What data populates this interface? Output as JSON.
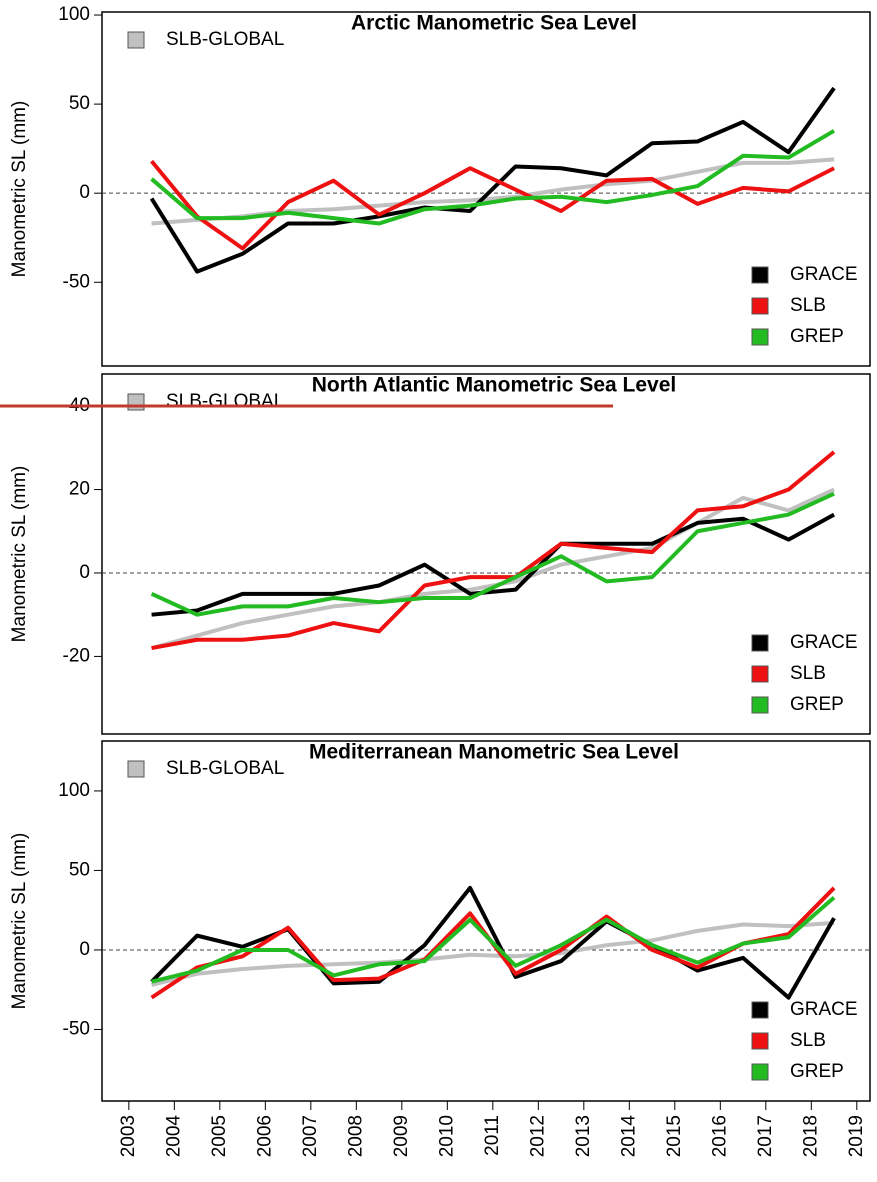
{
  "chart_data": [
    {
      "type": "line",
      "title": "Arctic Manometric Sea Level",
      "y_label": "Manometric SL (mm)",
      "x": [
        2003.5,
        2004.5,
        2005.5,
        2006.5,
        2007.5,
        2008.5,
        2009.5,
        2010.5,
        2011.5,
        2012.5,
        2013.5,
        2014.5,
        2015.5,
        2016.5,
        2017.5,
        2018.5
      ],
      "xlim": [
        2002.41,
        2019.29
      ],
      "ylim": [
        -97,
        101.7
      ],
      "yticks": [
        -50,
        0,
        50,
        100
      ],
      "hline": 0,
      "series": [
        {
          "name": "SLB-GLOBAL",
          "color": "#c0c0c0",
          "legend": "upper left",
          "values": [
            -17,
            -15,
            -13,
            -10,
            -9,
            -7,
            -5,
            -4,
            -2,
            2,
            5,
            7,
            12,
            17,
            17,
            19
          ]
        },
        {
          "name": "GRACE",
          "color": "#000000",
          "legend": "lower right",
          "values": [
            -3,
            -44,
            -34,
            -17,
            -17,
            -13,
            -8,
            -10,
            15,
            14,
            10,
            28,
            29,
            40,
            23,
            59
          ]
        },
        {
          "name": "SLB",
          "color": "#ee1111",
          "legend": "lower right",
          "values": [
            18,
            -13,
            -31,
            -5,
            7,
            -12,
            0,
            14,
            2,
            -10,
            7,
            8,
            -6,
            3,
            1,
            14
          ]
        },
        {
          "name": "GREP",
          "color": "#22bb22",
          "legend": "lower right",
          "values": [
            8,
            -14,
            -14,
            -11,
            -14,
            -17,
            -9,
            -7,
            -3,
            -2,
            -5,
            -1,
            4,
            21,
            20,
            35
          ]
        }
      ]
    },
    {
      "type": "line",
      "title": "North Atlantic Manometric Sea Level",
      "y_label": "Manometric SL (mm)",
      "x": [
        2003.5,
        2004.5,
        2005.5,
        2006.5,
        2007.5,
        2008.5,
        2009.5,
        2010.5,
        2011.5,
        2012.5,
        2013.5,
        2014.5,
        2015.5,
        2016.5,
        2017.5,
        2018.5
      ],
      "xlim": [
        2002.41,
        2019.29
      ],
      "ylim": [
        -38.6,
        47.7
      ],
      "yticks": [
        -20,
        0,
        20,
        40
      ],
      "hline": 0,
      "series": [
        {
          "name": "SLB-GLOBAL",
          "color": "#c0c0c0",
          "legend": "upper left",
          "values": [
            -18,
            -15,
            -12,
            -10,
            -8,
            -7,
            -5,
            -4,
            -2,
            2,
            4,
            6,
            12,
            18,
            15,
            20
          ]
        },
        {
          "name": "GRACE",
          "color": "#000000",
          "legend": "lower right",
          "values": [
            -10,
            -9,
            -5,
            -5,
            -5,
            -3,
            2,
            -5,
            -4,
            7,
            7,
            7,
            12,
            13,
            8,
            14
          ]
        },
        {
          "name": "SLB",
          "color": "#ee1111",
          "legend": "lower right",
          "values": [
            -18,
            -16,
            -16,
            -15,
            -12,
            -14,
            -3,
            -1,
            -1,
            7,
            6,
            5,
            15,
            16,
            20,
            29
          ]
        },
        {
          "name": "GREP",
          "color": "#22bb22",
          "legend": "lower right",
          "values": [
            -5,
            -10,
            -8,
            -8,
            -6,
            -7,
            -6,
            -6,
            -1,
            4,
            -2,
            -1,
            10,
            12,
            14,
            19
          ]
        }
      ]
    },
    {
      "type": "line",
      "title": "Mediterranean Manometric Sea Level",
      "y_label": "Manometric SL (mm)",
      "x": [
        2003.5,
        2004.5,
        2005.5,
        2006.5,
        2007.5,
        2008.5,
        2009.5,
        2010.5,
        2011.5,
        2012.5,
        2013.5,
        2014.5,
        2015.5,
        2016.5,
        2017.5,
        2018.5
      ],
      "xlim": [
        2002.41,
        2019.29
      ],
      "ylim": [
        -95,
        131.4
      ],
      "yticks": [
        -50,
        0,
        50,
        100
      ],
      "hline": 0,
      "xticks": [
        2003,
        2004,
        2005,
        2006,
        2007,
        2008,
        2009,
        2010,
        2011,
        2012,
        2013,
        2014,
        2015,
        2016,
        2017,
        2018,
        2019
      ],
      "series": [
        {
          "name": "SLB-GLOBAL",
          "color": "#c0c0c0",
          "legend": "upper left",
          "values": [
            -22,
            -15,
            -12,
            -10,
            -9,
            -8,
            -6,
            -3,
            -4,
            -2,
            3,
            6,
            12,
            16,
            15,
            17
          ]
        },
        {
          "name": "GRACE",
          "color": "#000000",
          "legend": "lower right",
          "values": [
            -20,
            9,
            2,
            13,
            -21,
            -20,
            3,
            39,
            -17,
            -7,
            18,
            3,
            -13,
            -5,
            -30,
            20
          ]
        },
        {
          "name": "SLB",
          "color": "#ee1111",
          "legend": "lower right",
          "values": [
            -30,
            -11,
            -4,
            14,
            -19,
            -18,
            -6,
            23,
            -15,
            0,
            21,
            0,
            -11,
            4,
            10,
            39
          ]
        },
        {
          "name": "GREP",
          "color": "#22bb22",
          "legend": "lower right",
          "values": [
            -20,
            -13,
            0,
            0,
            -16,
            -9,
            -7,
            19,
            -10,
            3,
            19,
            3,
            -8,
            4,
            8,
            33
          ]
        }
      ]
    }
  ]
}
